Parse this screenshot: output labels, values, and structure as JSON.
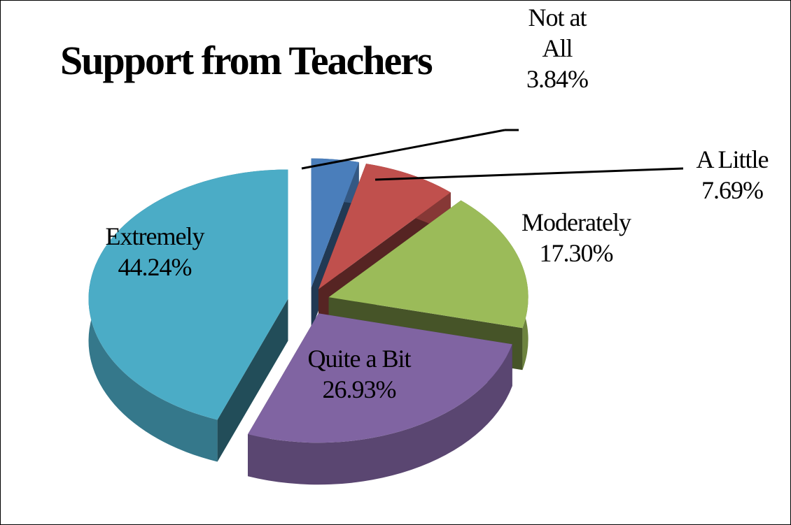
{
  "chart_data": {
    "type": "pie",
    "title": "Support from Teachers",
    "categories": [
      "Not at All",
      "A Little",
      "Moderately",
      "Quite a Bit",
      "Extremely"
    ],
    "values": [
      3.84,
      7.69,
      17.3,
      26.93,
      44.24
    ],
    "value_labels": [
      "3.84%",
      "7.69%",
      "17.30%",
      "26.93%",
      "44.24%"
    ],
    "colors": [
      "#4a7ebb",
      "#c0504d",
      "#9bbb59",
      "#8064a2",
      "#4bacc6"
    ]
  }
}
